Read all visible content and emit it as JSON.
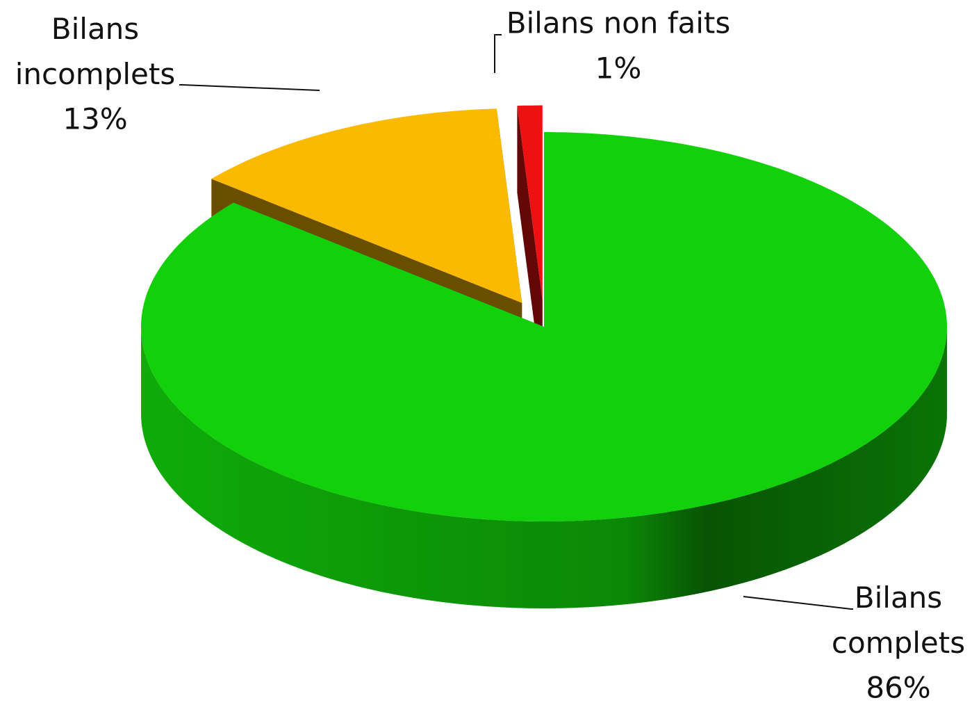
{
  "chart_data": {
    "type": "pie",
    "categories": [
      "Bilans complets",
      "Bilans incomplets",
      "Bilans non faits"
    ],
    "values": [
      86,
      13,
      1
    ],
    "value_labels": [
      "86%",
      "13%",
      "1%"
    ],
    "colors": [
      "#12d10a",
      "#fbb900",
      "#ee1111"
    ]
  }
}
